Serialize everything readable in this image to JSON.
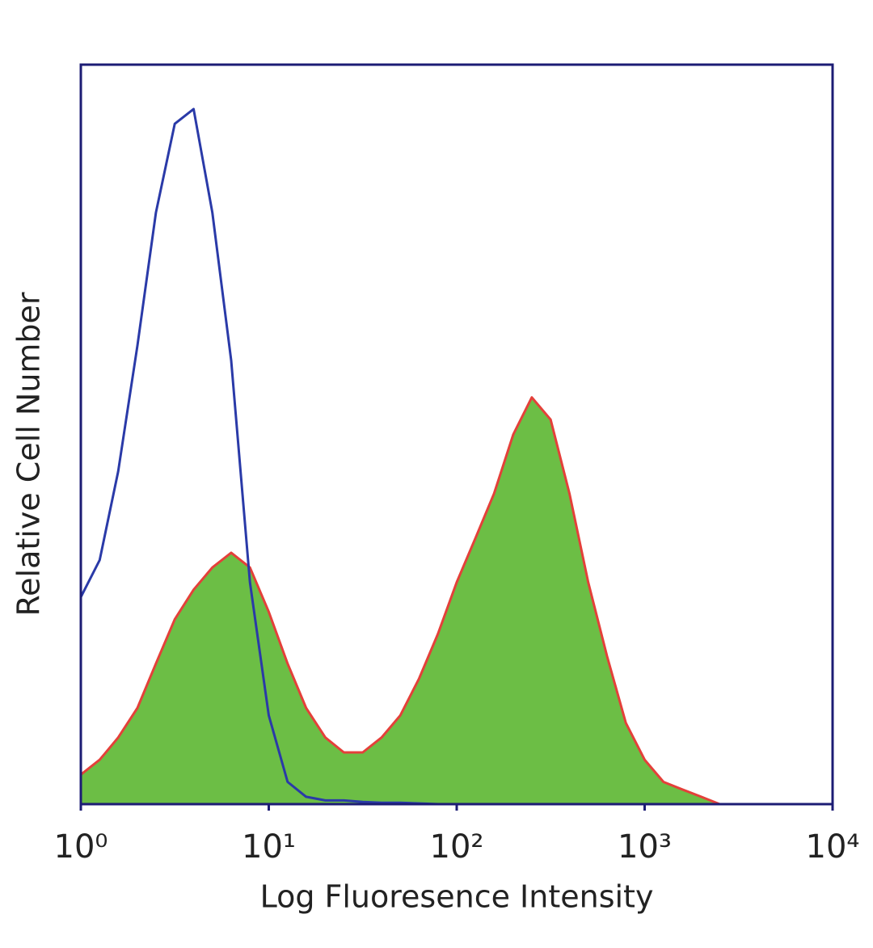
{
  "chart_data": {
    "type": "histogram-overlay",
    "x_label": "Log Fluoresence Intensity",
    "y_label": "Relative Cell Number",
    "xscale": "log",
    "xlim": [
      1,
      10000
    ],
    "ylim": [
      0,
      100
    ],
    "xticks": [
      {
        "value": 1,
        "label": "10⁰"
      },
      {
        "value": 10,
        "label": "10¹"
      },
      {
        "value": 100,
        "label": "10²"
      },
      {
        "value": 1000,
        "label": "10³"
      },
      {
        "value": 10000,
        "label": "10⁴"
      }
    ],
    "frame_color": "#1c1c74",
    "x": [
      1,
      1.26,
      1.58,
      2,
      2.51,
      3.16,
      3.98,
      5.01,
      6.31,
      7.94,
      10,
      12.6,
      15.8,
      20,
      25.1,
      31.6,
      39.8,
      50.1,
      63.1,
      79.4,
      100,
      126,
      158,
      200,
      251,
      316,
      398,
      501,
      631,
      794,
      1000,
      1260,
      1580,
      2000,
      2510,
      3160,
      3980,
      5010,
      6310,
      7940,
      10000
    ],
    "series": [
      {
        "color": "#e4403a",
        "fill": "#6cbe45",
        "values": [
          4,
          6,
          9,
          13,
          19,
          25,
          29,
          32,
          34,
          32,
          26,
          19,
          13,
          9,
          7,
          7,
          9,
          12,
          17,
          23,
          30,
          36,
          42,
          50,
          55,
          52,
          42,
          30,
          20,
          11,
          6,
          3,
          2,
          1,
          0,
          0,
          0,
          0,
          0,
          0,
          0
        ]
      },
      {
        "color": "#2a3aa8",
        "values": [
          28,
          33,
          45,
          62,
          80,
          92,
          94,
          80,
          60,
          30,
          12,
          3,
          1,
          0.5,
          0.5,
          0.3,
          0.2,
          0.2,
          0.1,
          0,
          0,
          0,
          0,
          0,
          0,
          0,
          0,
          0,
          0,
          0,
          0,
          0,
          0,
          0,
          0,
          0,
          0,
          0,
          0,
          0,
          0
        ]
      }
    ]
  }
}
